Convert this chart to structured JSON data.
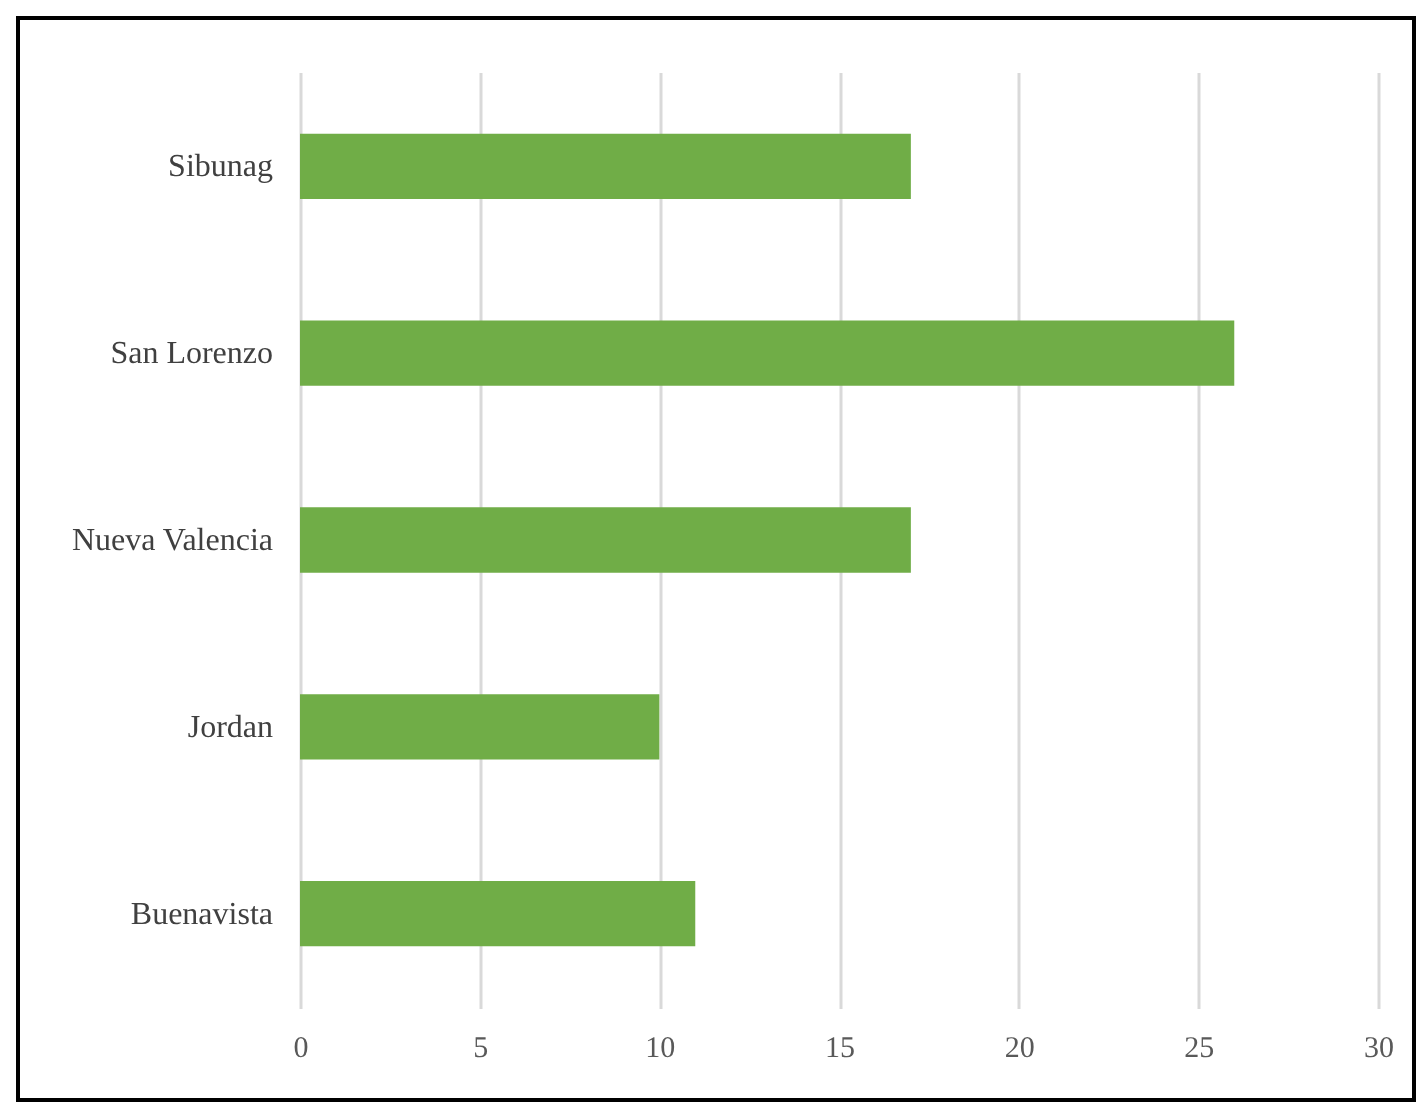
{
  "chart_data": {
    "type": "bar",
    "orientation": "horizontal",
    "categories": [
      "Sibunag",
      "San Lorenzo",
      "Nueva Valencia",
      "Jordan",
      "Buenavista"
    ],
    "values": [
      17,
      26,
      17,
      10,
      11
    ],
    "color": "#70ad47",
    "xlim": [
      0,
      30
    ],
    "xticks": [
      0,
      5,
      10,
      15,
      20,
      25,
      30
    ],
    "grid": "x"
  }
}
